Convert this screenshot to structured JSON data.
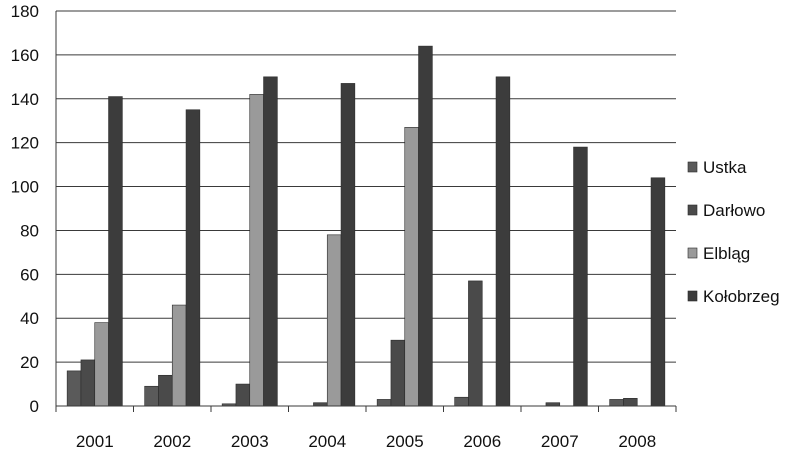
{
  "chart_data": {
    "type": "bar",
    "title": "",
    "xlabel": "",
    "ylabel": "",
    "ylim": [
      0,
      180
    ],
    "yticks": [
      0,
      20,
      40,
      60,
      80,
      100,
      120,
      140,
      160,
      180
    ],
    "grid": true,
    "legend_position": "right",
    "categories": [
      "2001",
      "2002",
      "2003",
      "2004",
      "2005",
      "2006",
      "2007",
      "2008"
    ],
    "series": [
      {
        "name": "Ustka",
        "color": "#5a5a5a",
        "values": [
          16,
          9,
          1,
          0,
          3,
          4,
          0,
          3
        ]
      },
      {
        "name": "Darłowo",
        "color": "#4a4a4a",
        "values": [
          21,
          14,
          10,
          1.5,
          30,
          57,
          1.5,
          3.5
        ]
      },
      {
        "name": "Elbląg",
        "color": "#9a9a9a",
        "values": [
          38,
          46,
          142,
          78,
          127,
          0,
          0,
          0
        ]
      },
      {
        "name": "Kołobrzeg",
        "color": "#3c3c3c",
        "values": [
          141,
          135,
          150,
          147,
          164,
          150,
          118,
          104
        ]
      }
    ]
  }
}
